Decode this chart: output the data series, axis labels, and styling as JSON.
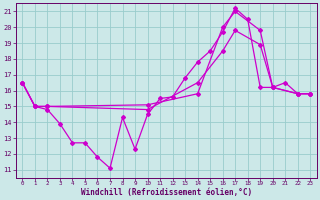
{
  "xlabel": "Windchill (Refroidissement éolien,°C)",
  "xlim": [
    -0.5,
    23.5
  ],
  "ylim": [
    10.5,
    21.5
  ],
  "yticks": [
    11,
    12,
    13,
    14,
    15,
    16,
    17,
    18,
    19,
    20,
    21
  ],
  "xticks": [
    0,
    1,
    2,
    3,
    4,
    5,
    6,
    7,
    8,
    9,
    10,
    11,
    12,
    13,
    14,
    15,
    16,
    17,
    18,
    19,
    20,
    21,
    22,
    23
  ],
  "background_color": "#cce8e8",
  "grid_color": "#99cccc",
  "line_color": "#cc00cc",
  "line1_x": [
    0,
    1,
    2,
    3,
    4,
    5,
    6,
    7,
    8,
    9,
    10,
    11,
    12,
    13,
    14,
    15,
    16,
    17,
    18,
    19,
    20,
    21,
    22,
    23
  ],
  "line1_y": [
    16.5,
    15.0,
    14.8,
    13.9,
    12.7,
    12.7,
    11.8,
    11.1,
    14.3,
    12.3,
    14.5,
    15.5,
    15.6,
    16.8,
    17.8,
    18.5,
    19.7,
    21.2,
    20.5,
    16.2,
    16.2,
    16.5,
    15.8,
    15.8
  ],
  "line2_x": [
    0,
    1,
    2,
    10,
    14,
    16,
    17,
    19,
    20,
    22,
    23
  ],
  "line2_y": [
    16.5,
    15.0,
    15.0,
    15.1,
    15.8,
    20.0,
    21.0,
    19.8,
    16.2,
    15.8,
    15.8
  ],
  "line3_x": [
    0,
    1,
    2,
    10,
    14,
    16,
    17,
    19,
    20,
    22,
    23
  ],
  "line3_y": [
    16.5,
    15.0,
    15.0,
    14.8,
    16.5,
    18.5,
    19.8,
    18.9,
    16.2,
    15.8,
    15.8
  ]
}
